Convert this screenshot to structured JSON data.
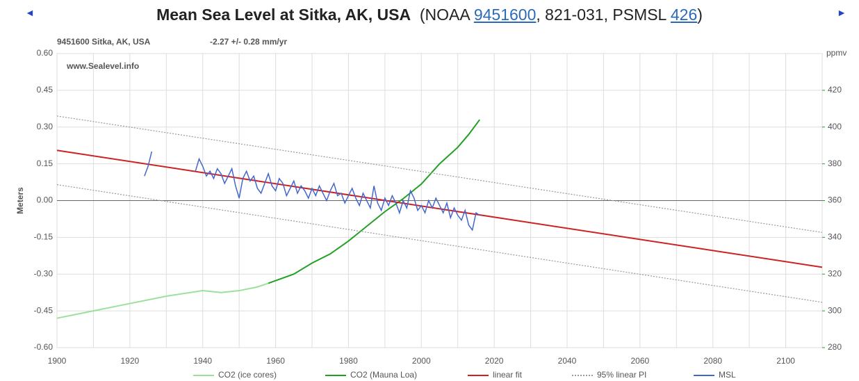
{
  "chart_data": {
    "type": "line",
    "title": "Mean Sea Level at Sitka, AK, USA",
    "title_source": [
      {
        "text": "  (NOAA "
      },
      {
        "text": "9451600",
        "link": true
      },
      {
        "text": ", 821-031, PSMSL "
      },
      {
        "text": "426",
        "link": true
      },
      {
        "text": ")"
      }
    ],
    "subtitle": "9451600 Sitka, AK, USA",
    "trend": "-2.27 +/- 0.28 mm/yr",
    "watermark": "www.Sealevel.info",
    "y_label": "Meters",
    "y2_label": "ppmv",
    "xlim": [
      1900,
      2110
    ],
    "xticks": [
      1900,
      1920,
      1940,
      1960,
      1980,
      2000,
      2020,
      2040,
      2060,
      2080,
      2100
    ],
    "x_minor_grid": [
      1910,
      1930,
      1950,
      1970,
      1990,
      2010,
      2030,
      2050,
      2070,
      2090,
      2110
    ],
    "ylim": [
      -0.6,
      0.6
    ],
    "yticks": [
      {
        "value": 0.6,
        "label": "0.60"
      },
      0.45,
      {
        "value": 0.3,
        "label": "0.30"
      },
      0.15,
      {
        "value": 0,
        "label": "0.00"
      },
      -0.15,
      {
        "value": -0.3,
        "label": "-0.30"
      },
      -0.45,
      {
        "value": -0.6,
        "label": "-0.60"
      }
    ],
    "y2lim": [
      280,
      440
    ],
    "y2ticks": [
      280,
      300,
      320,
      340,
      360,
      380,
      400,
      420
    ],
    "grid": true,
    "series": [
      {
        "name": "CO2 (ice cores)",
        "color": "#9be09b",
        "axis": "y2",
        "x": [
          1900,
          1910,
          1920,
          1930,
          1940,
          1945,
          1950,
          1955,
          1958
        ],
        "values": [
          296,
          300,
          304,
          308,
          311,
          310,
          311,
          313,
          315
        ]
      },
      {
        "name": "CO2 (Mauna Loa)",
        "color": "#22a022",
        "axis": "y2",
        "x": [
          1958,
          1965,
          1970,
          1975,
          1980,
          1985,
          1990,
          1995,
          2000,
          2005,
          2010,
          2013,
          2016
        ],
        "values": [
          315,
          320,
          326,
          331,
          338,
          346,
          354,
          361,
          369,
          380,
          389,
          396,
          404
        ]
      },
      {
        "name": "linear fit",
        "color": "#cc2222",
        "x": [
          1900,
          2110
        ],
        "values": [
          0.205,
          -0.272
        ]
      },
      {
        "name": "95% linear PI",
        "color": "#999999",
        "style": "dotted",
        "x": [
          1900,
          2110
        ],
        "values": [
          0.345,
          -0.13
        ],
        "lower_values": [
          0.065,
          -0.415
        ]
      },
      {
        "name": "MSL",
        "color": "#4466cc",
        "x": [
          1924,
          1925,
          1926,
          1927,
          1929,
          1930,
          1938,
          1939,
          1940,
          1941,
          1942,
          1943,
          1944,
          1945,
          1946,
          1947,
          1948,
          1949,
          1950,
          1951,
          1952,
          1953,
          1954,
          1955,
          1956,
          1957,
          1958,
          1959,
          1960,
          1961,
          1962,
          1963,
          1964,
          1965,
          1966,
          1967,
          1968,
          1969,
          1970,
          1971,
          1972,
          1973,
          1974,
          1975,
          1976,
          1977,
          1978,
          1979,
          1980,
          1981,
          1982,
          1983,
          1984,
          1985,
          1986,
          1987,
          1988,
          1989,
          1990,
          1991,
          1992,
          1993,
          1994,
          1995,
          1996,
          1997,
          1998,
          1999,
          2000,
          2001,
          2002,
          2003,
          2004,
          2005,
          2006,
          2007,
          2008,
          2009,
          2010,
          2011,
          2012,
          2013,
          2014,
          2015,
          2016
        ],
        "values": [
          0.1,
          0.14,
          0.2,
          null,
          0.1,
          null,
          0.12,
          0.17,
          0.14,
          0.1,
          0.12,
          0.09,
          0.13,
          0.11,
          0.07,
          0.1,
          0.13,
          0.06,
          0.01,
          0.09,
          0.12,
          0.08,
          0.1,
          0.05,
          0.03,
          0.07,
          0.11,
          0.06,
          0.04,
          0.09,
          0.07,
          0.02,
          0.05,
          0.08,
          0.03,
          0.06,
          0.04,
          0.01,
          0.05,
          0.02,
          0.06,
          0.03,
          0,
          0.04,
          0.07,
          0.02,
          0.03,
          -0.01,
          0.02,
          0.05,
          0.01,
          -0.02,
          0.03,
          0,
          -0.03,
          0.06,
          -0.01,
          -0.04,
          0.01,
          -0.02,
          0.02,
          -0.01,
          -0.05,
          0,
          -0.03,
          0.04,
          0.01,
          -0.04,
          -0.02,
          -0.05,
          0,
          -0.03,
          0.01,
          -0.02,
          -0.05,
          -0.01,
          -0.07,
          -0.03,
          -0.06,
          -0.08,
          -0.04,
          -0.1,
          -0.12,
          -0.05,
          -0.06
        ]
      }
    ]
  }
}
